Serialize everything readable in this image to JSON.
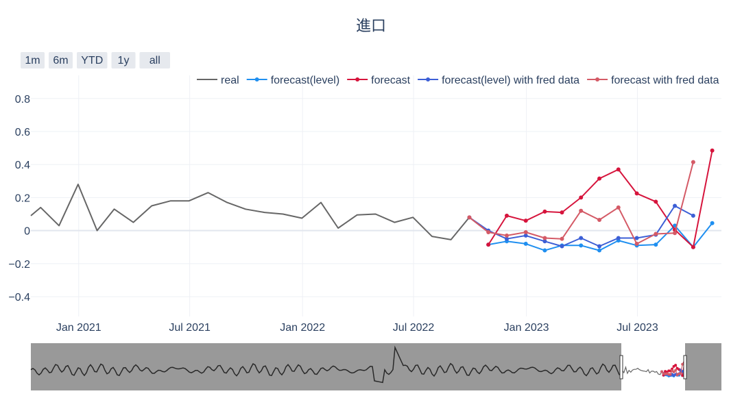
{
  "chart_data": {
    "type": "line",
    "title": "進口",
    "range_selector": [
      "1m",
      "6m",
      "YTD",
      "1y",
      "all"
    ],
    "x_ticks": [
      "Jan 2021",
      "Jul 2021",
      "Jan 2022",
      "Jul 2022",
      "Jan 2023",
      "Jul 2023"
    ],
    "x_range": [
      "2020-10-15",
      "2023-11-15"
    ],
    "y_ticks": [
      "0.8",
      "0.6",
      "0.4",
      "0.2",
      "0",
      "−0.2",
      "−0.4"
    ],
    "y_range": [
      -0.52,
      0.94
    ],
    "grid": true,
    "legend_position": "top-right",
    "range_slider": true,
    "series": [
      {
        "name": "real",
        "color": "#666666",
        "markers": false,
        "points": [
          [
            "2020-10-15",
            0.09
          ],
          [
            "2020-10-31",
            0.14
          ],
          [
            "2020-11-30",
            0.03
          ],
          [
            "2020-12-31",
            0.28
          ],
          [
            "2021-01-31",
            0.0
          ],
          [
            "2021-02-28",
            0.13
          ],
          [
            "2021-03-31",
            0.05
          ],
          [
            "2021-04-30",
            0.15
          ],
          [
            "2021-05-31",
            0.18
          ],
          [
            "2021-06-30",
            0.18
          ],
          [
            "2021-07-31",
            0.23
          ],
          [
            "2021-08-31",
            0.17
          ],
          [
            "2021-09-30",
            0.13
          ],
          [
            "2021-10-31",
            0.11
          ],
          [
            "2021-11-30",
            0.1
          ],
          [
            "2021-12-31",
            0.075
          ],
          [
            "2022-01-31",
            0.17
          ],
          [
            "2022-02-28",
            0.015
          ],
          [
            "2022-03-31",
            0.095
          ],
          [
            "2022-04-30",
            0.1
          ],
          [
            "2022-05-31",
            0.05
          ],
          [
            "2022-06-30",
            0.08
          ],
          [
            "2022-07-31",
            -0.035
          ],
          [
            "2022-08-31",
            -0.055
          ],
          [
            "2022-09-30",
            0.08
          ],
          [
            "2022-10-31",
            -0.01
          ]
        ]
      },
      {
        "name": "forecast(level)",
        "color": "#1f8ff0",
        "markers": true,
        "points": [
          [
            "2022-10-31",
            -0.085
          ],
          [
            "2022-11-30",
            -0.065
          ],
          [
            "2022-12-31",
            -0.08
          ],
          [
            "2023-01-31",
            -0.12
          ],
          [
            "2023-02-28",
            -0.09
          ],
          [
            "2023-03-31",
            -0.09
          ],
          [
            "2023-04-30",
            -0.12
          ],
          [
            "2023-05-31",
            -0.06
          ],
          [
            "2023-06-30",
            -0.09
          ],
          [
            "2023-07-31",
            -0.085
          ],
          [
            "2023-08-31",
            0.03
          ],
          [
            "2023-09-30",
            -0.1
          ],
          [
            "2023-10-31",
            0.045
          ]
        ]
      },
      {
        "name": "forecast",
        "color": "#d6143c",
        "markers": true,
        "points": [
          [
            "2022-10-31",
            -0.085
          ],
          [
            "2022-11-30",
            0.09
          ],
          [
            "2022-12-31",
            0.06
          ],
          [
            "2023-01-31",
            0.115
          ],
          [
            "2023-02-28",
            0.11
          ],
          [
            "2023-03-31",
            0.2
          ],
          [
            "2023-04-30",
            0.315
          ],
          [
            "2023-05-31",
            0.37
          ],
          [
            "2023-06-30",
            0.225
          ],
          [
            "2023-07-31",
            0.175
          ],
          [
            "2023-08-31",
            0.005
          ],
          [
            "2023-09-30",
            -0.1
          ],
          [
            "2023-10-31",
            0.485
          ]
        ]
      },
      {
        "name": "forecast(level) with fred data",
        "color": "#3c5fd6",
        "markers": true,
        "points": [
          [
            "2022-09-30",
            0.08
          ],
          [
            "2022-10-31",
            0.0
          ],
          [
            "2022-11-30",
            -0.05
          ],
          [
            "2022-12-31",
            -0.03
          ],
          [
            "2023-01-31",
            -0.065
          ],
          [
            "2023-02-28",
            -0.095
          ],
          [
            "2023-03-31",
            -0.045
          ],
          [
            "2023-04-30",
            -0.095
          ],
          [
            "2023-05-31",
            -0.045
          ],
          [
            "2023-06-30",
            -0.045
          ],
          [
            "2023-07-31",
            -0.025
          ],
          [
            "2023-08-31",
            0.15
          ],
          [
            "2023-09-30",
            0.09
          ]
        ]
      },
      {
        "name": "forecast with fred data",
        "color": "#d45a66",
        "markers": true,
        "points": [
          [
            "2022-09-30",
            0.08
          ],
          [
            "2022-10-31",
            -0.01
          ],
          [
            "2022-11-30",
            -0.03
          ],
          [
            "2022-12-31",
            -0.01
          ],
          [
            "2023-01-31",
            -0.045
          ],
          [
            "2023-02-28",
            -0.05
          ],
          [
            "2023-03-31",
            0.12
          ],
          [
            "2023-04-30",
            0.065
          ],
          [
            "2023-05-31",
            0.14
          ],
          [
            "2023-06-30",
            -0.08
          ],
          [
            "2023-07-31",
            -0.02
          ],
          [
            "2023-08-31",
            -0.015
          ],
          [
            "2023-09-30",
            0.415
          ]
        ]
      }
    ]
  }
}
